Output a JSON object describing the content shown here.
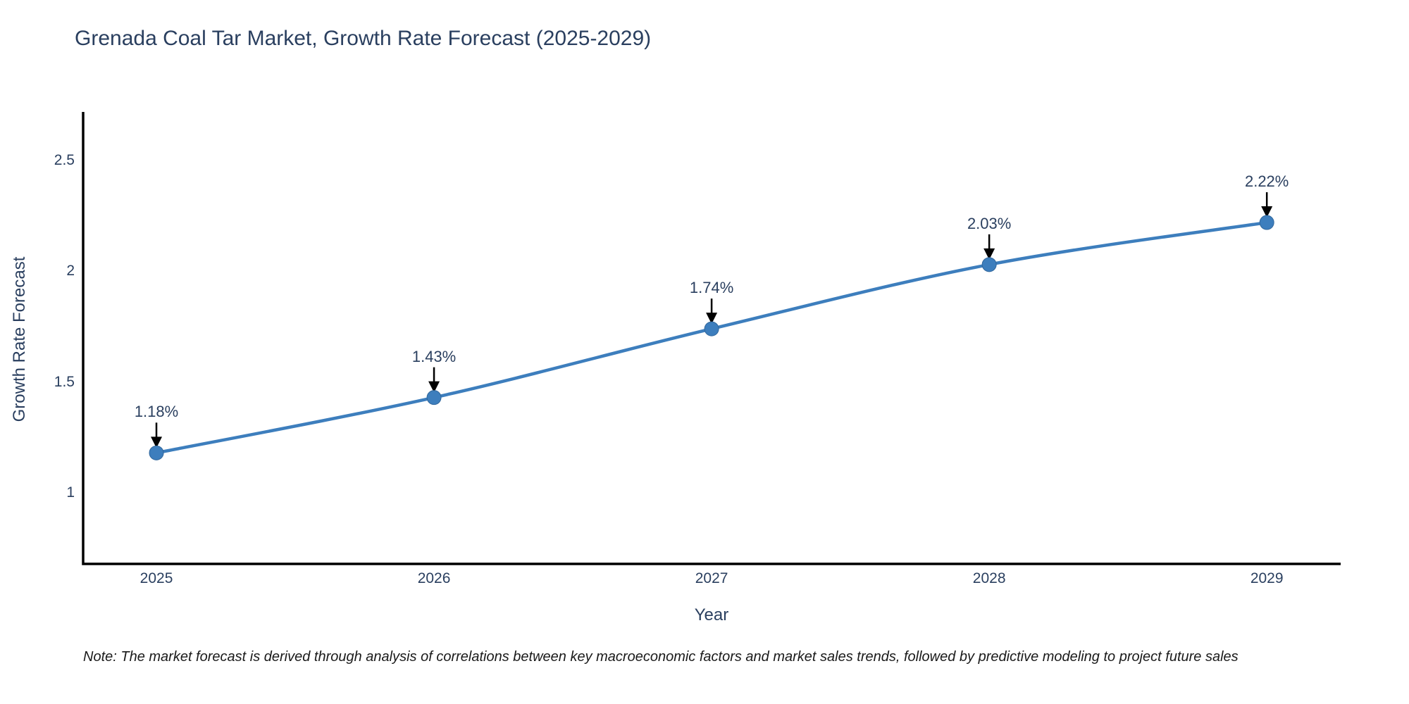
{
  "note": "Note: The market forecast is derived through analysis of correlations between key macroeconomic factors and market sales trends, followed by predictive modeling to project future sales",
  "chart_data": {
    "type": "line",
    "title": "Grenada Coal Tar Market, Growth Rate Forecast (2025-2029)",
    "xlabel": "Year",
    "ylabel": "Growth Rate Forecast",
    "x": [
      2025,
      2026,
      2027,
      2028,
      2029
    ],
    "values": [
      1.18,
      1.43,
      1.74,
      2.03,
      2.22
    ],
    "point_labels": [
      "1.18%",
      "1.43%",
      "1.74%",
      "2.03%",
      "2.22%"
    ],
    "xtick_labels": [
      "2025",
      "2026",
      "2027",
      "2028",
      "2029"
    ],
    "yticks": [
      1,
      1.5,
      2,
      2.5
    ],
    "ytick_labels": [
      "1",
      "1.5",
      "2",
      "2.5"
    ],
    "xlim": [
      2024.736,
      2029.266
    ],
    "ylim": [
      0.679,
      2.719
    ],
    "grid": false,
    "legend": false,
    "line_shape": "spline",
    "colors": {
      "line": "#3d7ebd",
      "marker": "#3d7ebd",
      "marker_edge": "#31679c",
      "axis": "#000000",
      "text": "#2a3f5f",
      "arrow": "#000000",
      "background": "#ffffff"
    }
  }
}
